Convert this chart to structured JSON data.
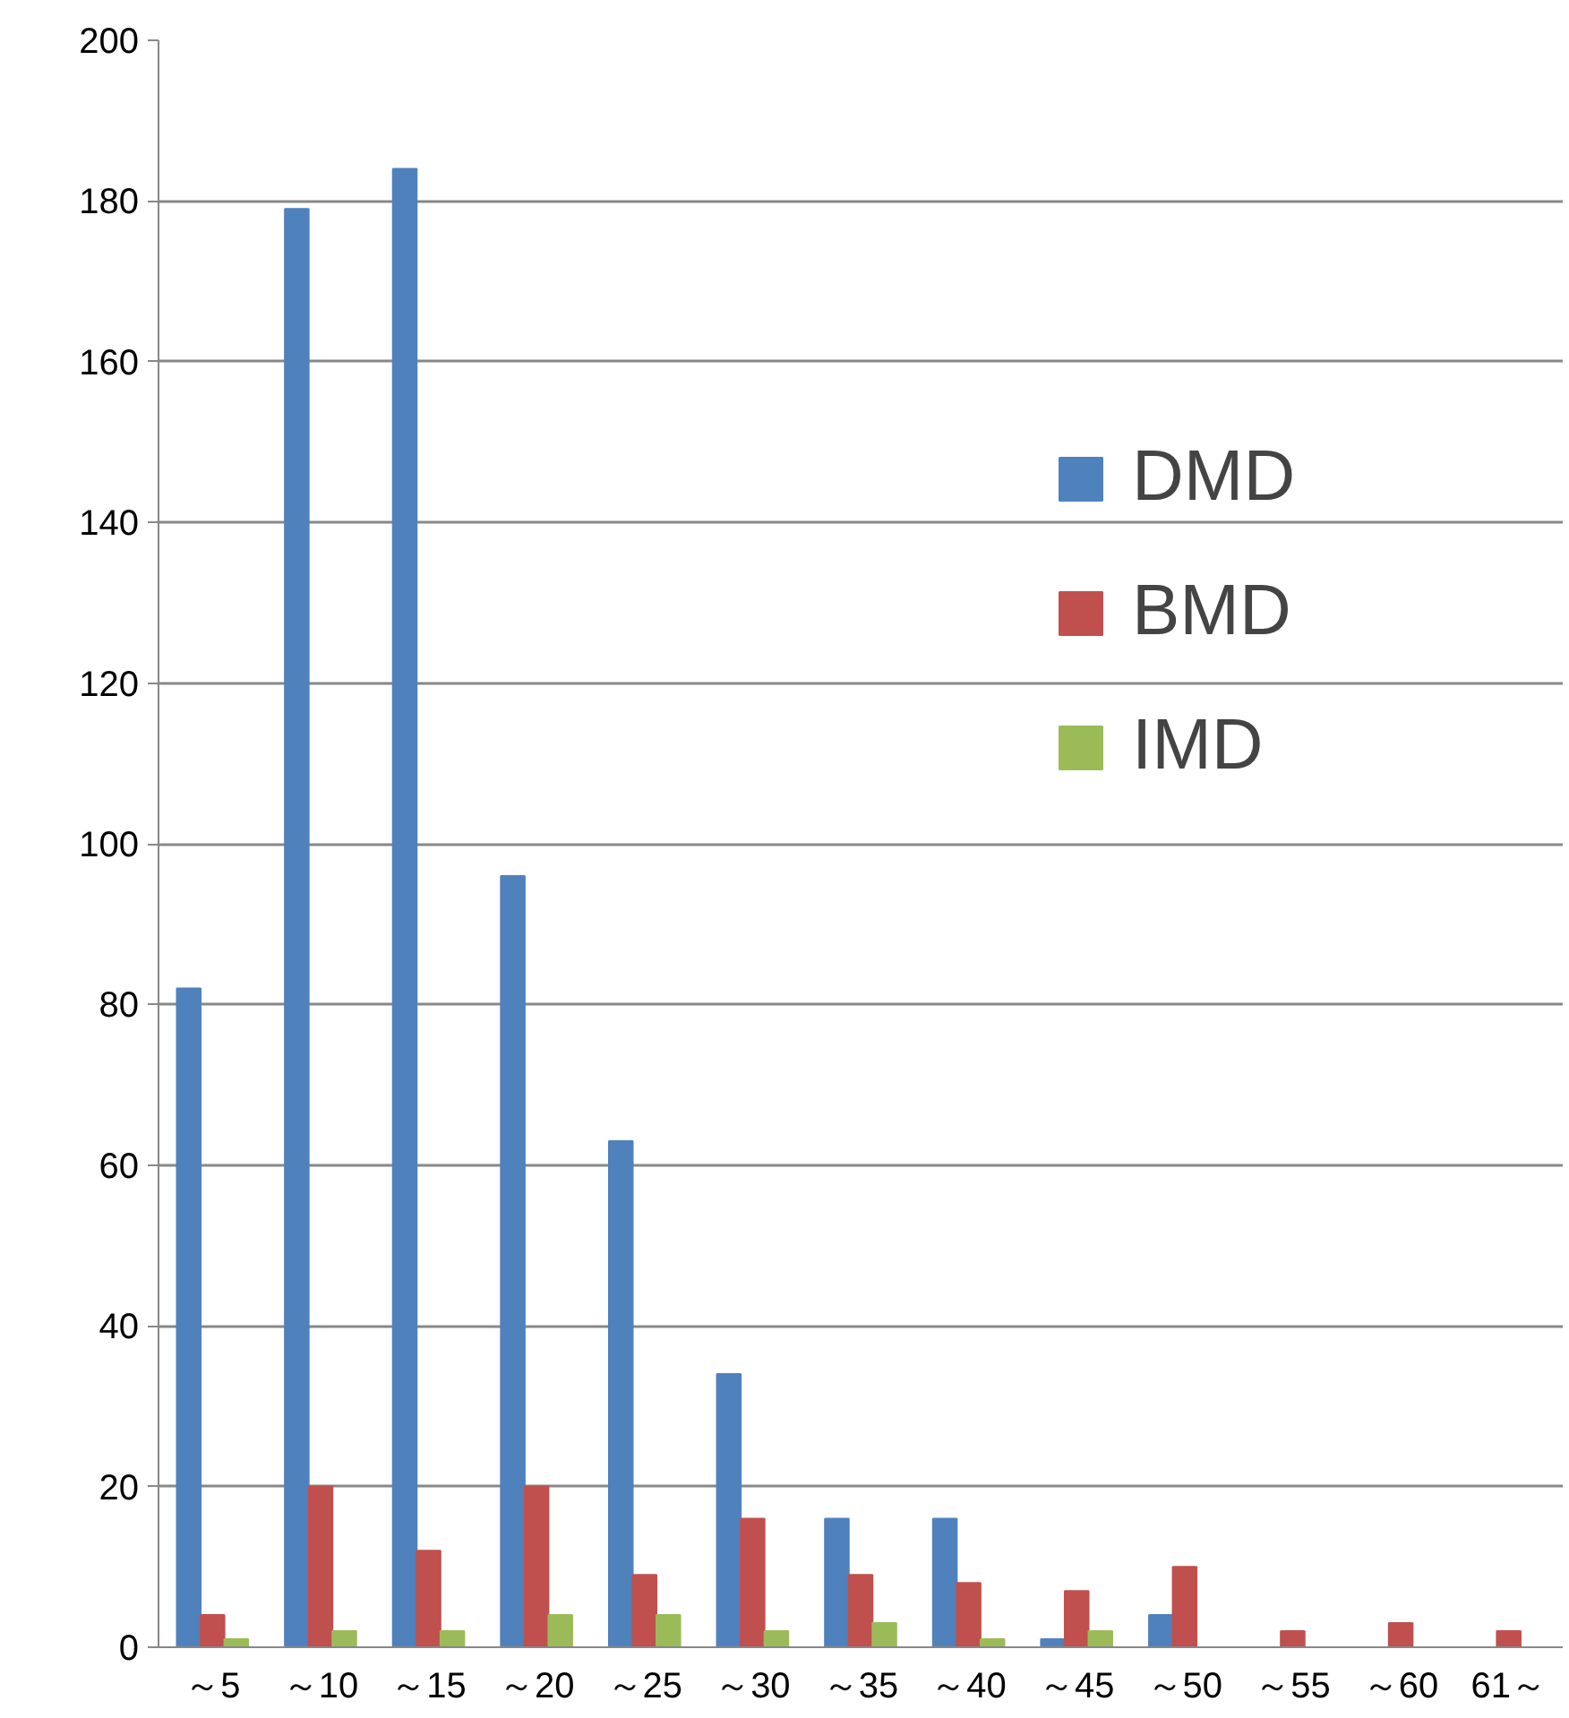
{
  "chart_data": {
    "type": "bar",
    "categories": [
      "～5",
      "～10",
      "～15",
      "～20",
      "～25",
      "～30",
      "～35",
      "～40",
      "～45",
      "～50",
      "～55",
      "～60",
      "61～"
    ],
    "series": [
      {
        "name": "DMD",
        "color": "#4f81bd",
        "values": [
          82,
          179,
          184,
          96,
          63,
          34,
          16,
          16,
          1,
          4,
          0,
          0,
          0
        ]
      },
      {
        "name": "BMD",
        "color": "#c0504d",
        "values": [
          4,
          20,
          12,
          20,
          9,
          16,
          9,
          8,
          7,
          10,
          2,
          3,
          2
        ]
      },
      {
        "name": "IMD",
        "color": "#9bbb59",
        "values": [
          1,
          2,
          2,
          4,
          4,
          2,
          3,
          1,
          2,
          0,
          0,
          0,
          0
        ]
      }
    ],
    "ylim": [
      0,
      200
    ],
    "yticks": [
      0,
      20,
      40,
      60,
      80,
      100,
      120,
      140,
      160,
      180,
      200
    ],
    "grid": "y",
    "legend": "top right"
  }
}
